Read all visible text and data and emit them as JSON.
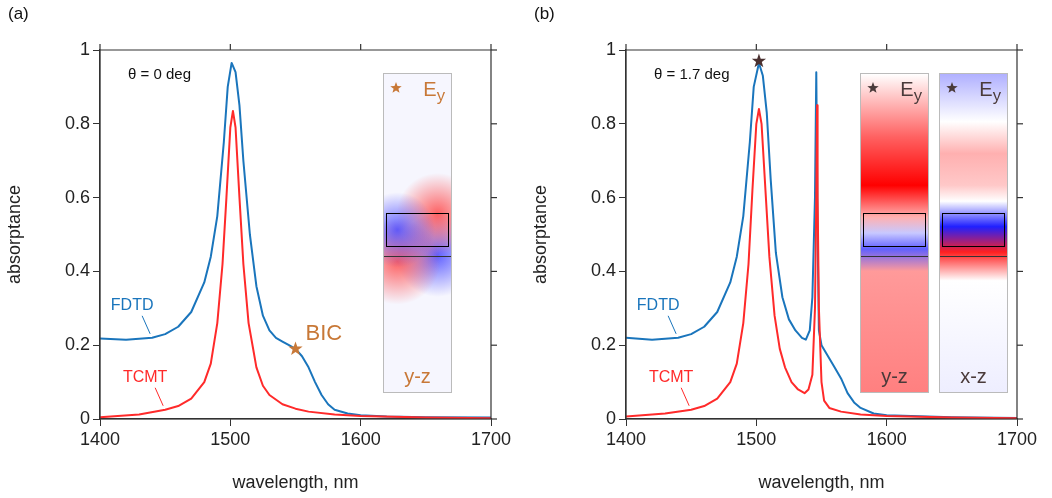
{
  "chart_data": [
    {
      "type": "line",
      "title": "(a)",
      "xlabel": "wavelength, nm",
      "ylabel": "absorptance",
      "xlim": [
        1400,
        1700
      ],
      "ylim": [
        0,
        1
      ],
      "xticks": [
        1400,
        1500,
        1600,
        1700
      ],
      "yticks": [
        0,
        0.2,
        0.4,
        0.6,
        0.8,
        1
      ],
      "grid": false,
      "legend": false,
      "marker": "none",
      "line_style": "solid",
      "series": [
        {
          "name": "FDTD",
          "color": "#1a75bc",
          "x": [
            1400,
            1420,
            1440,
            1450,
            1460,
            1470,
            1480,
            1485,
            1490,
            1495,
            1498,
            1501,
            1504,
            1507,
            1510,
            1515,
            1520,
            1525,
            1530,
            1535,
            1540,
            1545,
            1550,
            1555,
            1560,
            1565,
            1570,
            1575,
            1580,
            1590,
            1600,
            1620,
            1650,
            1700
          ],
          "values": [
            0.218,
            0.215,
            0.22,
            0.23,
            0.25,
            0.29,
            0.37,
            0.44,
            0.55,
            0.75,
            0.9,
            0.965,
            0.94,
            0.85,
            0.7,
            0.5,
            0.36,
            0.28,
            0.24,
            0.22,
            0.21,
            0.2,
            0.19,
            0.17,
            0.14,
            0.1,
            0.065,
            0.04,
            0.025,
            0.015,
            0.01,
            0.007,
            0.005,
            0.004
          ]
        },
        {
          "name": "TCMT",
          "color": "#ff2a2a",
          "x": [
            1400,
            1430,
            1450,
            1460,
            1470,
            1480,
            1485,
            1490,
            1494,
            1497,
            1500,
            1502,
            1504,
            1507,
            1510,
            1514,
            1520,
            1525,
            1530,
            1540,
            1550,
            1560,
            1580,
            1600,
            1650,
            1700
          ],
          "values": [
            0.005,
            0.012,
            0.025,
            0.035,
            0.055,
            0.1,
            0.15,
            0.26,
            0.42,
            0.6,
            0.79,
            0.835,
            0.79,
            0.6,
            0.42,
            0.26,
            0.14,
            0.09,
            0.065,
            0.04,
            0.028,
            0.02,
            0.012,
            0.008,
            0.004,
            0.002
          ]
        },
        {
          "type": "scatter",
          "marker": "star",
          "color": "#c87837",
          "x": [
            1550
          ],
          "values": [
            0.19
          ]
        }
      ],
      "annotations": [
        "θ = 0 deg",
        {
          "text": "BIC",
          "x": 1550,
          "y": 0.19
        },
        "E$_{y}$",
        "y-z"
      ]
    },
    {
      "type": "line",
      "title": "(b)",
      "xlabel": "wavelength, nm",
      "ylabel": "absorptance",
      "xlim": [
        1400,
        1700
      ],
      "ylim": [
        0,
        1
      ],
      "xticks": [
        1400,
        1500,
        1600,
        1700
      ],
      "yticks": [
        0,
        0.2,
        0.4,
        0.6,
        0.8,
        1
      ],
      "grid": false,
      "legend": false,
      "marker": "none",
      "line_style": "solid",
      "series": [
        {
          "name": "FDTD",
          "color": "#1a75bc",
          "x": [
            1400,
            1420,
            1440,
            1450,
            1460,
            1470,
            1480,
            1485,
            1490,
            1495,
            1498,
            1502,
            1505,
            1508,
            1511,
            1515,
            1520,
            1525,
            1530,
            1535,
            1538,
            1541,
            1543,
            1545,
            1546,
            1547,
            1548,
            1550,
            1555,
            1560,
            1565,
            1570,
            1575,
            1580,
            1590,
            1600,
            1650,
            1700
          ],
          "values": [
            0.22,
            0.215,
            0.22,
            0.23,
            0.25,
            0.29,
            0.37,
            0.44,
            0.55,
            0.75,
            0.9,
            0.965,
            0.93,
            0.83,
            0.65,
            0.45,
            0.33,
            0.27,
            0.24,
            0.22,
            0.215,
            0.24,
            0.33,
            0.6,
            0.94,
            0.5,
            0.24,
            0.2,
            0.17,
            0.14,
            0.11,
            0.07,
            0.045,
            0.03,
            0.015,
            0.01,
            0.005,
            0.003
          ]
        },
        {
          "name": "TCMT",
          "color": "#ff2a2a",
          "x": [
            1400,
            1430,
            1450,
            1460,
            1470,
            1480,
            1485,
            1490,
            1494,
            1497,
            1500,
            1502,
            1504,
            1507,
            1510,
            1514,
            1518,
            1522,
            1527,
            1532,
            1537,
            1540,
            1543,
            1545,
            1546,
            1546.6,
            1547,
            1548,
            1550,
            1552,
            1556,
            1565,
            1580,
            1600,
            1650,
            1700
          ],
          "values": [
            0.007,
            0.015,
            0.025,
            0.035,
            0.055,
            0.1,
            0.15,
            0.26,
            0.42,
            0.62,
            0.8,
            0.84,
            0.8,
            0.62,
            0.44,
            0.28,
            0.19,
            0.14,
            0.1,
            0.08,
            0.07,
            0.08,
            0.12,
            0.3,
            0.6,
            0.85,
            0.6,
            0.3,
            0.1,
            0.05,
            0.03,
            0.02,
            0.012,
            0.008,
            0.004,
            0.002
          ]
        },
        {
          "type": "scatter",
          "marker": "star",
          "color": "#4a3030",
          "x": [
            1502
          ],
          "values": [
            0.97
          ]
        }
      ],
      "annotations": [
        "θ = 1.7 deg",
        "E$_{y}$",
        "y-z",
        "E$_{y}$",
        "x-z"
      ]
    }
  ]
}
